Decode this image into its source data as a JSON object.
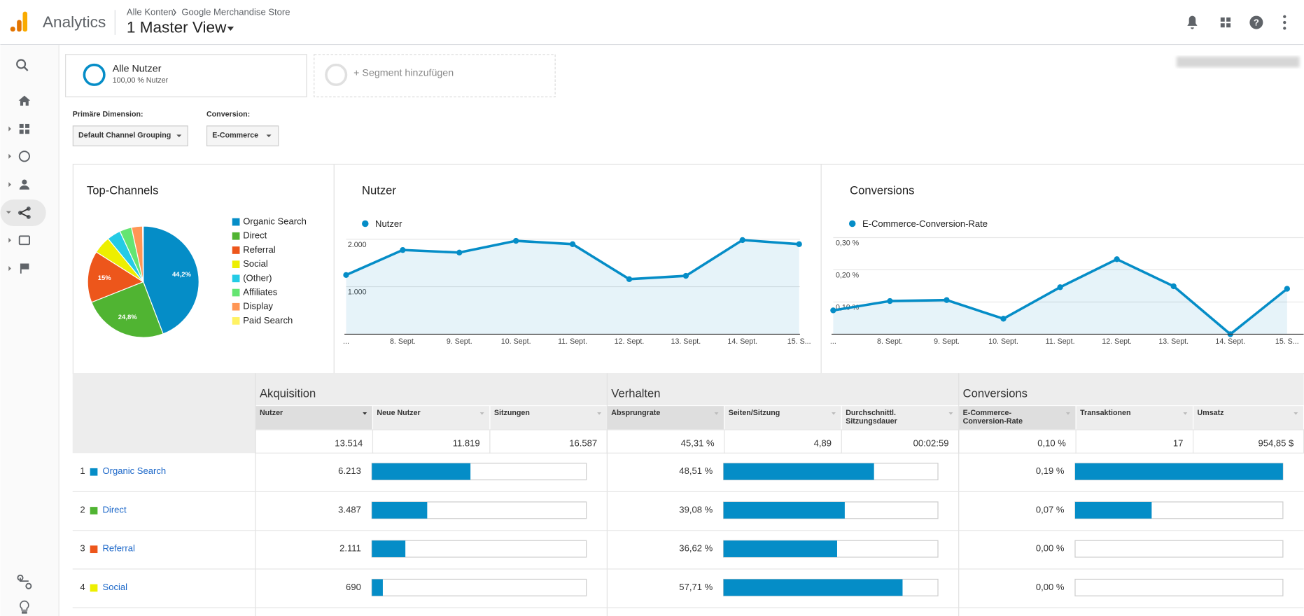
{
  "header": {
    "app": "Analytics",
    "breadcrumb": [
      "Alle Konten",
      "Google Merchandise Store"
    ],
    "view": "1 Master View"
  },
  "segments": {
    "active": {
      "name": "Alle Nutzer",
      "detail": "100,00 % Nutzer"
    },
    "add": "+ Segment hinzufügen"
  },
  "controls": [
    {
      "label": "Primäre Dimension:",
      "value": "Default Channel Grouping"
    },
    {
      "label": "Conversion:",
      "value": "E-Commerce"
    }
  ],
  "chart_data": [
    {
      "type": "pie",
      "title": "Top-Channels",
      "categories": [
        "Organic Search",
        "Direct",
        "Referral",
        "Social",
        "(Other)",
        "Affiliates",
        "Display",
        "Paid Search"
      ],
      "values": [
        44.2,
        24.8,
        15,
        5.1,
        4,
        3.5,
        3.2,
        0.2
      ],
      "value_labels": [
        "44,2%",
        "24,8%",
        "15%",
        null,
        null,
        null,
        null,
        null
      ],
      "colors": [
        "#058dc7",
        "#50b432",
        "#ed561b",
        "#edef00",
        "#24cbe5",
        "#64e572",
        "#ff9655",
        "#fff263"
      ]
    },
    {
      "type": "line",
      "title": "Nutzer",
      "categories": [
        "...",
        "8. Sept.",
        "9. Sept.",
        "10. Sept.",
        "11. Sept.",
        "12. Sept.",
        "13. Sept.",
        "14. Sept.",
        "15. S..."
      ],
      "series": [
        {
          "name": "Nutzer",
          "color": "#058dc7",
          "values": [
            1246,
            1772,
            1719,
            1965,
            1895,
            1158,
            1228,
            1982,
            1895
          ]
        }
      ],
      "ylim": [
        0,
        2100
      ],
      "yticks": [
        {
          "value": 1000,
          "label": "1.000"
        },
        {
          "value": 2000,
          "label": "2.000"
        }
      ],
      "grid": true
    },
    {
      "type": "line",
      "title": "Conversions",
      "categories": [
        "...",
        "8. Sept.",
        "9. Sept.",
        "10. Sept.",
        "11. Sept.",
        "12. Sept.",
        "13. Sept.",
        "14. Sept.",
        "15. S..."
      ],
      "series": [
        {
          "name": "E-Commerce-Conversion-Rate",
          "color": "#058dc7",
          "values": [
            0.074,
            0.103,
            0.106,
            0.048,
            0.146,
            0.233,
            0.149,
            0,
            0.141
          ]
        }
      ],
      "ylim": [
        0,
        0.31
      ],
      "yticks": [
        {
          "value": 0.1,
          "label": "0,10 %"
        },
        {
          "value": 0.2,
          "label": "0,20 %"
        },
        {
          "value": 0.3,
          "label": "0,30 %"
        }
      ],
      "grid": true
    }
  ],
  "table": {
    "groups": [
      {
        "name": "Akquisition",
        "columns": [
          "Nutzer",
          "Neue Nutzer",
          "Sitzungen"
        ]
      },
      {
        "name": "Verhalten",
        "columns": [
          "Absprungrate",
          "Seiten/Sitzung",
          [
            "Durchschnittl.",
            "Sitzungsdauer"
          ]
        ]
      },
      {
        "name": "Conversions",
        "columns": [
          [
            "E-Commerce-",
            "Conversion-Rate"
          ],
          "Transaktionen",
          "Umsatz"
        ]
      }
    ],
    "totals": [
      {
        "value": 13514,
        "label": "13.514"
      },
      {
        "value": 11819,
        "label": "11.819"
      },
      {
        "value": 16587,
        "label": "16.587"
      },
      {
        "value": 45.31,
        "label": "45,31 %"
      },
      {
        "value": 4.89,
        "label": "4,89"
      },
      "00:02:59",
      {
        "value": 0.1,
        "label": "0,10 %"
      },
      17,
      {
        "value": 954.85,
        "label": "954,85 $"
      }
    ],
    "rows": [
      {
        "rank": 1,
        "channel": "Organic Search",
        "color": "#058dc7",
        "cells": [
          {
            "value": 6213,
            "label": "6.213"
          },
          {
            "value": 48.51,
            "label": "48,51 %"
          },
          {
            "value": 0.19,
            "label": "0,19 %"
          }
        ]
      },
      {
        "rank": 2,
        "channel": "Direct",
        "color": "#50b432",
        "cells": [
          {
            "value": 3487,
            "label": "3.487"
          },
          {
            "value": 39.08,
            "label": "39,08 %"
          },
          {
            "value": 0.07,
            "label": "0,07 %"
          }
        ]
      },
      {
        "rank": 3,
        "channel": "Referral",
        "color": "#ed561b",
        "cells": [
          {
            "value": 2111,
            "label": "2.111"
          },
          {
            "value": 36.62,
            "label": "36,62 %"
          },
          {
            "value": 0,
            "label": "0,00 %"
          }
        ]
      },
      {
        "rank": 4,
        "channel": "Social",
        "color": "#edef00",
        "cells": [
          690,
          {
            "value": 57.71,
            "label": "57,71 %"
          },
          {
            "value": 0,
            "label": "0,00 %"
          }
        ]
      }
    ]
  }
}
